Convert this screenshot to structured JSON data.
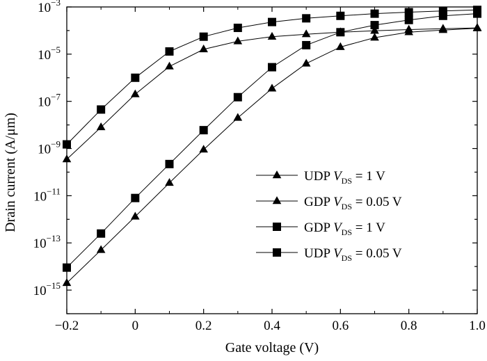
{
  "chart_data": {
    "type": "line",
    "xlabel": "Gate voltage (V)",
    "ylabel": "Drain current (A/μm)",
    "xlim": [
      -0.2,
      1.0
    ],
    "ylim_exponent": [
      -16,
      -3
    ],
    "yscale": "log",
    "x_ticks": [
      -0.2,
      0,
      0.2,
      0.4,
      0.6,
      0.8,
      1.0
    ],
    "x_tick_labels": [
      "−0.2",
      "0",
      "0.2",
      "0.4",
      "0.6",
      "0.8",
      "1.0"
    ],
    "y_tick_exponents": [
      -15,
      -13,
      -11,
      -9,
      -7,
      -5,
      -3
    ],
    "legend_position": "center-right",
    "series": [
      {
        "name": "UDP V_DS = 1 V",
        "legend_main": "UDP ",
        "legend_var": "V",
        "legend_sub": "DS",
        "legend_rest": " = 1 V",
        "marker": "triangle",
        "x": [
          -0.2,
          -0.1,
          0,
          0.1,
          0.2,
          0.3,
          0.4,
          0.5,
          0.6,
          0.7,
          0.8,
          0.9,
          1.0
        ],
        "y": [
          3.5e-10,
          8e-09,
          2e-07,
          3e-06,
          1.6e-05,
          3.5e-05,
          5.5e-05,
          7e-05,
          8.5e-05,
          9.8e-05,
          0.00011,
          0.00012,
          0.00013
        ]
      },
      {
        "name": "GDP V_DS = 0.05 V",
        "legend_main": "GDP ",
        "legend_var": "V",
        "legend_sub": "DS",
        "legend_rest": " = 0.05 V",
        "marker": "triangle",
        "x": [
          -0.2,
          -0.1,
          0,
          0.1,
          0.2,
          0.3,
          0.4,
          0.5,
          0.6,
          0.7,
          0.8,
          0.9,
          1.0
        ],
        "y": [
          2e-15,
          5e-14,
          1.3e-12,
          3.5e-11,
          9e-10,
          2e-08,
          3.5e-07,
          4e-06,
          2e-05,
          5e-05,
          8.5e-05,
          0.000105,
          0.000125
        ]
      },
      {
        "name": "GDP V_DS = 1 V",
        "legend_main": "GDP ",
        "legend_var": "V",
        "legend_sub": "DS",
        "legend_rest": " = 1 V",
        "marker": "square",
        "x": [
          -0.2,
          -0.1,
          0,
          0.1,
          0.2,
          0.3,
          0.4,
          0.5,
          0.6,
          0.7,
          0.8,
          0.9,
          1.0
        ],
        "y": [
          1.5e-09,
          4.5e-08,
          1e-06,
          1.3e-05,
          5.5e-05,
          0.00013,
          0.00023,
          0.00033,
          0.00042,
          0.00052,
          0.0006,
          0.00068,
          0.00075
        ]
      },
      {
        "name": "UDP V_DS = 0.05 V",
        "legend_main": "UDP ",
        "legend_var": "V",
        "legend_sub": "DS",
        "legend_rest": " = 0.05 V",
        "marker": "square",
        "x": [
          -0.2,
          -0.1,
          0,
          0.1,
          0.2,
          0.3,
          0.4,
          0.5,
          0.6,
          0.7,
          0.8,
          0.9,
          1.0
        ],
        "y": [
          9e-15,
          2.5e-13,
          8e-12,
          2.2e-10,
          6e-09,
          1.5e-07,
          2.8e-06,
          2.4e-05,
          8.5e-05,
          0.00017,
          0.00028,
          0.00042,
          0.00052
        ]
      }
    ]
  }
}
